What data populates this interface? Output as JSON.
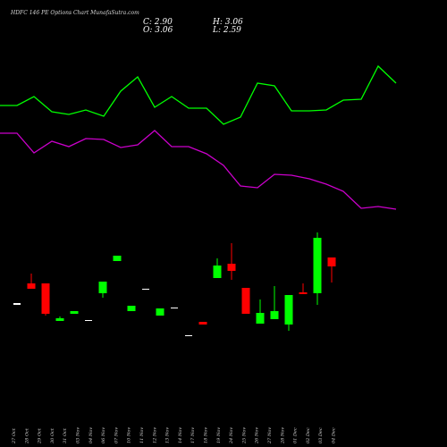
{
  "chart_data": {
    "type": "candlestick",
    "title": "HDFC 146 PE Options Chart MunafaSutra.com",
    "ohlc_readout": {
      "close": "C: 2.90",
      "open": "O: 3.06",
      "high": "H: 3.06",
      "low": "L: 2.59"
    },
    "dates": [
      "27 Oct",
      "28 Oct",
      "29 Oct",
      "30 Oct",
      "31 Oct",
      "03 Nov",
      "04 Nov",
      "06 Nov",
      "07 Nov",
      "10 Nov",
      "11 Nov",
      "12 Nov",
      "13 Nov",
      "14 Nov",
      "17 Nov",
      "18 Nov",
      "19 Nov",
      "24 Nov",
      "25 Nov",
      "26 Nov",
      "27 Nov",
      "28 Nov",
      "01 Dec",
      "02 Dec",
      "03 Dec",
      "04 Dec"
    ],
    "colors": {
      "background": "#000000",
      "up": "#00ff00",
      "down": "#ff0000",
      "neutral": "#ffffff",
      "line_1": "#00ff00",
      "line_2": "#cc00cc"
    }
  }
}
